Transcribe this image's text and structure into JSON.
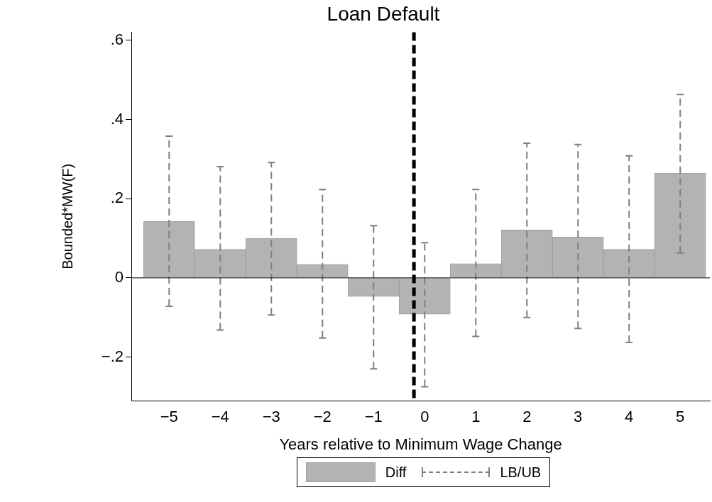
{
  "chart_data": {
    "type": "bar",
    "title": "Loan Default",
    "xlabel": "Years relative to Minimum Wage Change",
    "ylabel": "Bounded*MW(F)",
    "x": [
      -5,
      -4,
      -3,
      -2,
      -1,
      0,
      1,
      2,
      3,
      4,
      5
    ],
    "series": [
      {
        "name": "Diff",
        "color": "#b3b3b3",
        "values": [
          0.143,
          0.072,
          0.1,
          0.034,
          -0.047,
          -0.092,
          0.036,
          0.121,
          0.103,
          0.072,
          0.264
        ],
        "errors": [
          [
            -0.072,
            0.358
          ],
          [
            -0.132,
            0.281
          ],
          [
            -0.094,
            0.291
          ],
          [
            -0.152,
            0.223
          ],
          [
            -0.23,
            0.132
          ],
          [
            -0.275,
            0.089
          ],
          [
            -0.148,
            0.223
          ],
          [
            -0.1,
            0.34
          ],
          [
            -0.128,
            0.337
          ],
          [
            -0.163,
            0.308
          ],
          [
            0.063,
            0.463
          ]
        ]
      }
    ],
    "annotations": [
      "LB/UB"
    ],
    "xlim": [
      -5.74,
      5.58
    ],
    "xticks": [
      {
        "value": -5,
        "label": "−5"
      },
      {
        "value": -4,
        "label": "−4"
      },
      {
        "value": -3,
        "label": "−3"
      },
      {
        "value": -2,
        "label": "−2"
      },
      {
        "value": -1,
        "label": "−1"
      },
      0,
      1,
      2,
      3,
      4,
      5
    ],
    "ylim": [
      -0.31,
      0.62
    ],
    "yticks": [
      {
        "value": -0.2,
        "label": "−.2"
      },
      0,
      {
        "value": 0.2,
        "label": ".2"
      },
      {
        "value": 0.4,
        "label": ".4"
      },
      {
        "value": 0.6,
        "label": ".6"
      }
    ],
    "ref_lines": [
      {
        "axis": "x",
        "value": -0.21,
        "color": "#000000",
        "line_style": "dashed"
      },
      {
        "axis": "y",
        "value": 0,
        "color": "#000000",
        "line_style": "solid"
      }
    ],
    "grid": false,
    "legend": "bottom"
  }
}
